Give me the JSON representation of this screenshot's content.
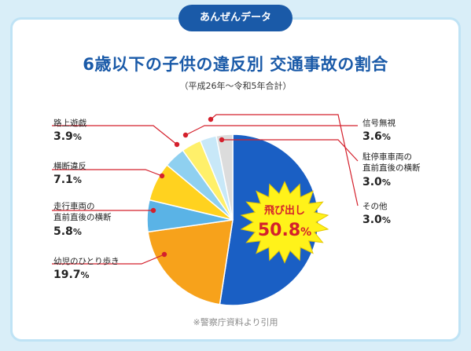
{
  "badge": "あんぜんデータ",
  "title": "6歳以下の子供の違反別 交通事故の割合",
  "subtitle": "（平成26年〜令和5年合計）",
  "source": "※警察庁資料より引用",
  "chart_data": {
    "type": "pie",
    "title": "6歳以下の子供の違反別 交通事故の割合",
    "subtitle": "（平成26年〜令和5年合計）",
    "start_angle_deg": 0,
    "direction": "clockwise",
    "slices": [
      {
        "label": "飛び出し",
        "value": 50.8,
        "value_text": "50.8",
        "unit": "%",
        "color": "#1a5fc4"
      },
      {
        "label": "幼児のひとり歩き",
        "value": 19.7,
        "value_text": "19.7",
        "unit": "%",
        "color": "#f7a21b"
      },
      {
        "label": "走行車両の直前直後の横断",
        "value": 5.8,
        "value_text": "5.8",
        "unit": "%",
        "color": "#5ab3e6"
      },
      {
        "label": "横断違反",
        "value": 7.1,
        "value_text": "7.1",
        "unit": "%",
        "color": "#ffd21f"
      },
      {
        "label": "路上遊戯",
        "value": 3.9,
        "value_text": "3.9",
        "unit": "%",
        "color": "#8fd0f0"
      },
      {
        "label": "信号無視",
        "value": 3.6,
        "value_text": "3.6",
        "unit": "%",
        "color": "#fff06a"
      },
      {
        "label": "駐停車車両の直前直後の横断",
        "value": 3.0,
        "value_text": "3.0",
        "unit": "%",
        "color": "#c8e8f8"
      },
      {
        "label": "その他",
        "value": 3.0,
        "value_text": "3.0",
        "unit": "%",
        "color": "#dcdcdc"
      }
    ],
    "callouts": {
      "left": [
        {
          "label": "路上遊戯",
          "value_text": "3.9"
        },
        {
          "label": "横断違反",
          "value_text": "7.1"
        },
        {
          "label": "走行車両の",
          "label2": "直前直後の横断",
          "value_text": "5.8"
        },
        {
          "label": "幼児のひとり歩き",
          "value_text": "19.7"
        }
      ],
      "right": [
        {
          "label": "信号無視",
          "value_text": "3.6"
        },
        {
          "label": "駐停車車両の",
          "label2": "直前直後の横断",
          "value_text": "3.0"
        },
        {
          "label": "その他",
          "value_text": "3.0"
        }
      ],
      "burst": {
        "label": "飛び出し",
        "value_text": "50.8",
        "unit": "%"
      }
    }
  }
}
